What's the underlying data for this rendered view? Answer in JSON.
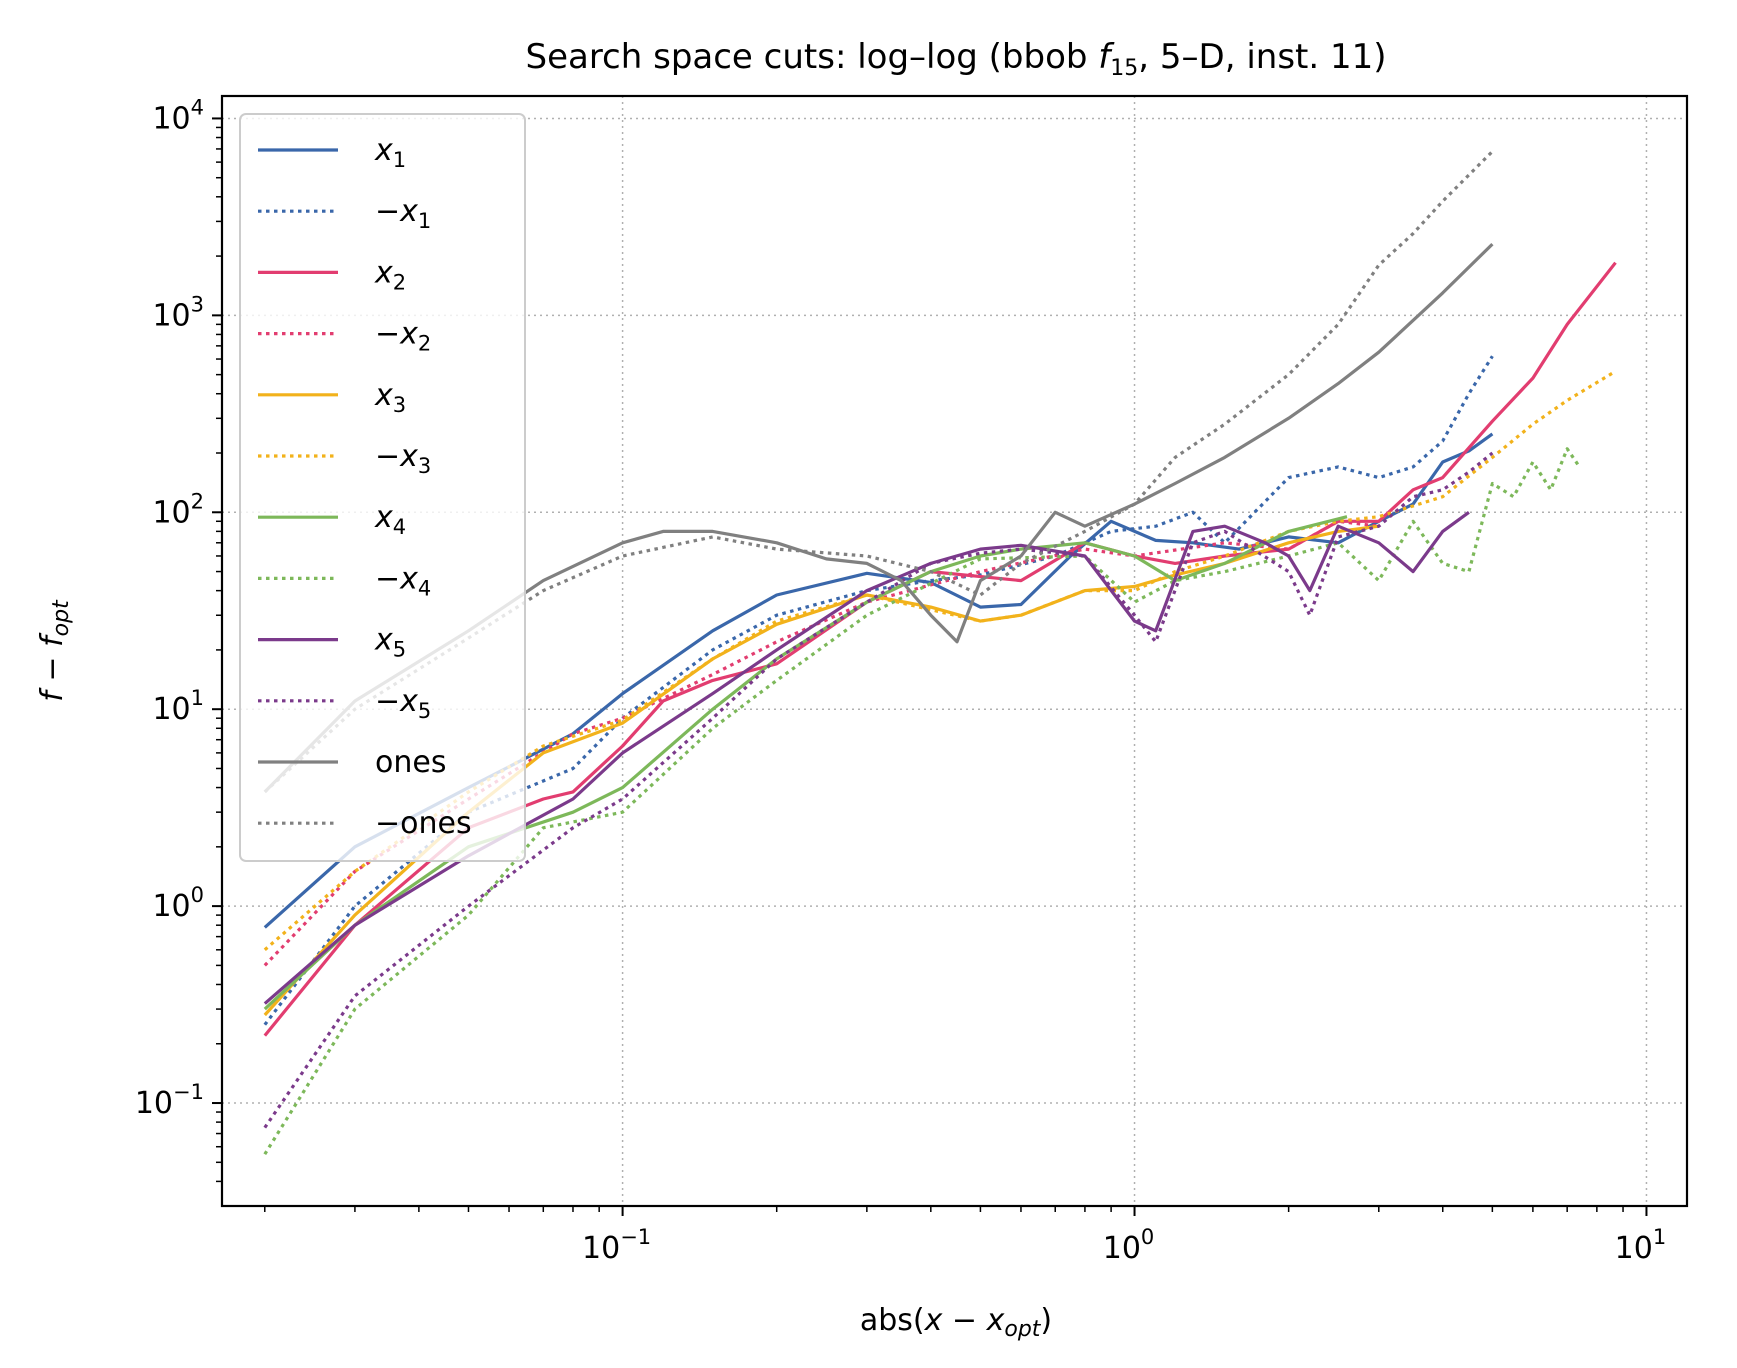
{
  "chart_data": {
    "type": "line",
    "title": "Search space cuts: log–log (bbob f15, 5–D, inst. 11)",
    "title_parts": {
      "prefix": "Search space cuts: log–log (bbob ",
      "f": "f",
      "sub": "15",
      "suffix": ", 5–D, inst. 11)"
    },
    "xlabel": "abs(x − x_opt)",
    "xlabel_parts": {
      "prefix": "abs(",
      "x": "x",
      "minus": " − ",
      "x2": "x",
      "sub": "opt",
      "suffix": ")"
    },
    "ylabel": "f − f_opt",
    "ylabel_parts": {
      "f": "f",
      "minus": " − ",
      "f2": "f",
      "sub": "opt"
    },
    "xscale": "log",
    "yscale": "log",
    "xlim": [
      0.0165,
      12
    ],
    "ylim": [
      0.03,
      13000
    ],
    "grid": true,
    "legend_position": "upper left",
    "x_ticks": [
      {
        "value": 0.1,
        "base": "10",
        "exp": "−1"
      },
      {
        "value": 1,
        "base": "10",
        "exp": "0"
      },
      {
        "value": 10,
        "base": "10",
        "exp": "1"
      }
    ],
    "y_ticks": [
      {
        "value": 0.1,
        "base": "10",
        "exp": "−1"
      },
      {
        "value": 1,
        "base": "10",
        "exp": "0"
      },
      {
        "value": 10,
        "base": "10",
        "exp": "1"
      },
      {
        "value": 100,
        "base": "10",
        "exp": "2"
      },
      {
        "value": 1000,
        "base": "10",
        "exp": "3"
      },
      {
        "value": 10000,
        "base": "10",
        "exp": "4"
      }
    ],
    "series": [
      {
        "name": "x1",
        "label_main": "x",
        "label_sub": "1",
        "label_neg": false,
        "color": "#3a67aa",
        "style": "solid",
        "x": [
          0.02,
          0.03,
          0.05,
          0.08,
          0.1,
          0.15,
          0.2,
          0.3,
          0.4,
          0.5,
          0.6,
          0.75,
          0.9,
          1.1,
          1.3,
          1.6,
          2.0,
          2.5,
          3.0,
          3.5,
          4.0,
          4.5,
          5.0
        ],
        "y": [
          0.78,
          2.0,
          4.0,
          7.5,
          12,
          25,
          38,
          49,
          44,
          33,
          34,
          60,
          90,
          72,
          70,
          65,
          75,
          70,
          90,
          110,
          180,
          205,
          250
        ]
      },
      {
        "name": "−x1",
        "label_main": "x",
        "label_sub": "1",
        "label_neg": true,
        "color": "#3a67aa",
        "style": "dotted",
        "x": [
          0.02,
          0.03,
          0.05,
          0.08,
          0.1,
          0.15,
          0.2,
          0.3,
          0.4,
          0.5,
          0.7,
          0.9,
          1.1,
          1.3,
          1.5,
          2.0,
          2.5,
          3.0,
          3.5,
          4.0,
          4.5,
          5.0
        ],
        "y": [
          0.25,
          1.0,
          3.0,
          5.0,
          9.0,
          20,
          30,
          40,
          45,
          48,
          60,
          80,
          85,
          100,
          70,
          150,
          170,
          150,
          170,
          230,
          400,
          620
        ]
      },
      {
        "name": "x2",
        "label_main": "x",
        "label_sub": "2",
        "label_neg": false,
        "color": "#e23d70",
        "style": "solid",
        "x": [
          0.02,
          0.03,
          0.05,
          0.07,
          0.08,
          0.1,
          0.12,
          0.15,
          0.2,
          0.3,
          0.4,
          0.6,
          0.8,
          1.0,
          1.2,
          1.5,
          2.0,
          2.5,
          3.0,
          3.5,
          4.0,
          5.0,
          6.0,
          7.0,
          8.7
        ],
        "y": [
          0.22,
          0.8,
          2.5,
          3.5,
          3.8,
          6.5,
          11,
          14,
          17,
          35,
          50,
          45,
          70,
          60,
          55,
          60,
          65,
          90,
          90,
          130,
          150,
          290,
          480,
          900,
          1850
        ]
      },
      {
        "name": "−x2",
        "label_main": "x",
        "label_sub": "2",
        "label_neg": true,
        "color": "#e23d70",
        "style": "dotted",
        "x": [
          0.02,
          0.03,
          0.05,
          0.08,
          0.1,
          0.15,
          0.2,
          0.3,
          0.5,
          0.8,
          1.0,
          1.5,
          2.0,
          2.5,
          3.0
        ],
        "y": [
          0.5,
          1.5,
          3.5,
          7.5,
          9.0,
          15,
          22,
          35,
          50,
          65,
          60,
          70,
          65,
          90,
          85
        ]
      },
      {
        "name": "x3",
        "label_main": "x",
        "label_sub": "3",
        "label_neg": false,
        "color": "#f2b21b",
        "style": "solid",
        "x": [
          0.02,
          0.03,
          0.05,
          0.07,
          0.1,
          0.15,
          0.2,
          0.3,
          0.4,
          0.5,
          0.6,
          0.8,
          1.0,
          1.2,
          1.5,
          2.0,
          2.5,
          3.0
        ],
        "y": [
          0.28,
          0.9,
          3.0,
          6.0,
          8.5,
          18,
          27,
          38,
          33,
          28,
          30,
          40,
          42,
          48,
          55,
          70,
          80,
          85
        ]
      },
      {
        "name": "−x3",
        "label_main": "x",
        "label_sub": "3",
        "label_neg": true,
        "color": "#f2b21b",
        "style": "dotted",
        "x": [
          0.02,
          0.03,
          0.05,
          0.07,
          0.1,
          0.15,
          0.2,
          0.3,
          0.4,
          0.5,
          0.6,
          0.8,
          1.0,
          1.2,
          1.5,
          2.0,
          2.5,
          3.0,
          4.0,
          5.0,
          6.0,
          7.0,
          8.7
        ],
        "y": [
          0.6,
          1.5,
          3.8,
          6.5,
          8.8,
          18,
          28,
          38,
          32,
          28,
          30,
          40,
          40,
          50,
          60,
          80,
          90,
          95,
          120,
          190,
          280,
          370,
          520
        ]
      },
      {
        "name": "x4",
        "label_main": "x",
        "label_sub": "4",
        "label_neg": false,
        "color": "#7db85a",
        "style": "solid",
        "x": [
          0.02,
          0.03,
          0.05,
          0.08,
          0.1,
          0.15,
          0.2,
          0.3,
          0.4,
          0.5,
          0.6,
          0.8,
          1.0,
          1.2,
          1.5,
          2.0,
          2.6
        ],
        "y": [
          0.3,
          0.8,
          2.0,
          3.0,
          4.0,
          10,
          18,
          35,
          50,
          60,
          65,
          70,
          60,
          45,
          55,
          80,
          95
        ]
      },
      {
        "name": "−x4",
        "label_main": "x",
        "label_sub": "4",
        "label_neg": true,
        "color": "#7db85a",
        "style": "dotted",
        "x": [
          0.02,
          0.03,
          0.05,
          0.07,
          0.1,
          0.15,
          0.2,
          0.3,
          0.5,
          0.8,
          1.0,
          1.2,
          1.5,
          2.0,
          2.5,
          3.0,
          3.5,
          4.0,
          4.5,
          5.0,
          5.5,
          6.0,
          6.5,
          7.0,
          7.4
        ],
        "y": [
          0.055,
          0.3,
          0.9,
          2.5,
          3.0,
          8.0,
          14,
          30,
          58,
          60,
          35,
          45,
          50,
          60,
          70,
          45,
          90,
          55,
          50,
          140,
          120,
          180,
          130,
          210,
          170
        ]
      },
      {
        "name": "x5",
        "label_main": "x",
        "label_sub": "5",
        "label_neg": false,
        "color": "#7b3a8b",
        "style": "solid",
        "x": [
          0.02,
          0.03,
          0.05,
          0.08,
          0.1,
          0.15,
          0.2,
          0.3,
          0.4,
          0.5,
          0.6,
          0.8,
          1.0,
          1.1,
          1.3,
          1.5,
          1.8,
          2.0,
          2.2,
          2.5,
          3.0,
          3.5,
          4.0,
          4.5
        ],
        "y": [
          0.32,
          0.8,
          1.8,
          3.5,
          6.0,
          12,
          20,
          40,
          55,
          65,
          68,
          60,
          28,
          25,
          80,
          85,
          70,
          60,
          40,
          85,
          70,
          50,
          80,
          100
        ]
      },
      {
        "name": "−x5",
        "label_main": "x",
        "label_sub": "5",
        "label_neg": true,
        "color": "#7b3a8b",
        "style": "dotted",
        "x": [
          0.02,
          0.03,
          0.05,
          0.08,
          0.1,
          0.15,
          0.2,
          0.3,
          0.4,
          0.5,
          0.6,
          0.8,
          1.0,
          1.1,
          1.3,
          1.5,
          2.0,
          2.2,
          2.5,
          3.0,
          3.5,
          4.0,
          4.5,
          5.0
        ],
        "y": [
          0.075,
          0.35,
          1.0,
          2.5,
          3.5,
          9.0,
          18,
          35,
          55,
          62,
          65,
          60,
          30,
          22,
          70,
          80,
          50,
          30,
          75,
          85,
          120,
          130,
          160,
          200
        ]
      },
      {
        "name": "ones",
        "label_main": "ones",
        "label_sub": "",
        "label_neg": false,
        "color": "#808080",
        "style": "solid",
        "x": [
          0.02,
          0.03,
          0.05,
          0.07,
          0.1,
          0.12,
          0.15,
          0.2,
          0.25,
          0.3,
          0.35,
          0.4,
          0.45,
          0.5,
          0.6,
          0.7,
          0.8,
          1.0,
          1.2,
          1.5,
          2.0,
          2.5,
          3.0,
          4.0,
          5.0
        ],
        "y": [
          3.8,
          11,
          25,
          45,
          70,
          80,
          80,
          70,
          58,
          55,
          45,
          30,
          22,
          45,
          60,
          100,
          85,
          110,
          140,
          190,
          300,
          450,
          650,
          1300,
          2300
        ]
      },
      {
        "name": "−ones",
        "label_main": "ones",
        "label_sub": "",
        "label_neg": true,
        "color": "#808080",
        "style": "dotted",
        "x": [
          0.02,
          0.03,
          0.05,
          0.07,
          0.1,
          0.15,
          0.2,
          0.3,
          0.4,
          0.5,
          0.6,
          0.8,
          1.0,
          1.2,
          1.5,
          2.0,
          2.5,
          3.0,
          3.5,
          4.0,
          5.0
        ],
        "y": [
          3.8,
          10,
          23,
          40,
          60,
          75,
          65,
          60,
          50,
          38,
          55,
          80,
          110,
          190,
          280,
          500,
          900,
          1800,
          2600,
          3800,
          6800
        ]
      }
    ]
  }
}
